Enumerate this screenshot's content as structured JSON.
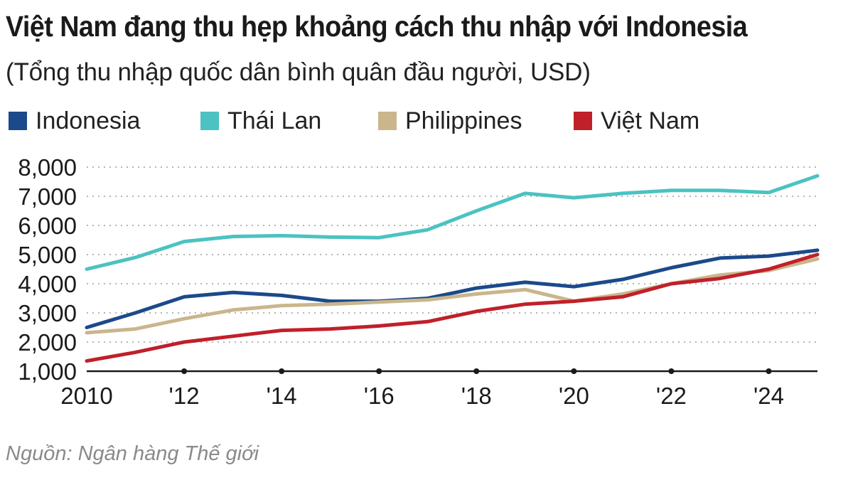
{
  "title": "Việt Nam đang thu hẹp khoảng cách thu nhập với Indonesia",
  "subtitle": "(Tổng thu nhập quốc dân bình quân đầu người, USD)",
  "source": "Nguồn: Ngân hàng Thế giới",
  "chart_data": {
    "type": "line",
    "title": "Việt Nam đang thu hẹp khoảng cách thu nhập với Indonesia",
    "subtitle": "(Tổng thu nhập quốc dân bình quân đầu người, USD)",
    "xlabel": "",
    "ylabel": "",
    "x": [
      2010,
      2011,
      2012,
      2013,
      2014,
      2015,
      2016,
      2017,
      2018,
      2019,
      2020,
      2021,
      2022,
      2023,
      2024,
      2025
    ],
    "x_ticks": [
      {
        "value": 2010,
        "label": "2010"
      },
      {
        "value": 2012,
        "label": "'12"
      },
      {
        "value": 2014,
        "label": "'14"
      },
      {
        "value": 2016,
        "label": "'16"
      },
      {
        "value": 2018,
        "label": "'18"
      },
      {
        "value": 2020,
        "label": "'20"
      },
      {
        "value": 2022,
        "label": "'22"
      },
      {
        "value": 2024,
        "label": "'24"
      }
    ],
    "y_ticks": [
      {
        "value": 1000,
        "label": "1,000"
      },
      {
        "value": 2000,
        "label": "2,000"
      },
      {
        "value": 3000,
        "label": "3,000"
      },
      {
        "value": 4000,
        "label": "4,000"
      },
      {
        "value": 5000,
        "label": "5,000"
      },
      {
        "value": 6000,
        "label": "6,000"
      },
      {
        "value": 7000,
        "label": "7,000"
      },
      {
        "value": 8000,
        "label": "8,000"
      }
    ],
    "xlim": [
      2010,
      2025
    ],
    "ylim": [
      1000,
      8000
    ],
    "grid": "horizontal-dotted",
    "legend_position": "top",
    "series": [
      {
        "name": "Indonesia",
        "color": "#1b4a8a",
        "values": [
          2500,
          3000,
          3550,
          3700,
          3600,
          3400,
          3400,
          3500,
          3850,
          4050,
          3900,
          4150,
          4550,
          4880,
          4950,
          5150
        ]
      },
      {
        "name": "Thái Lan",
        "color": "#4cc2c2",
        "values": [
          4500,
          4900,
          5450,
          5620,
          5650,
          5600,
          5580,
          5850,
          6500,
          7100,
          6950,
          7100,
          7200,
          7200,
          7130,
          7700
        ]
      },
      {
        "name": "Philippines",
        "color": "#c9b68c",
        "values": [
          2320,
          2450,
          2800,
          3100,
          3250,
          3300,
          3370,
          3450,
          3650,
          3800,
          3400,
          3650,
          4000,
          4300,
          4450,
          4850
        ]
      },
      {
        "name": "Việt Nam",
        "color": "#c0202a",
        "values": [
          1350,
          1650,
          2000,
          2200,
          2400,
          2450,
          2550,
          2700,
          3050,
          3300,
          3400,
          3550,
          4000,
          4180,
          4500,
          5000
        ]
      }
    ]
  }
}
